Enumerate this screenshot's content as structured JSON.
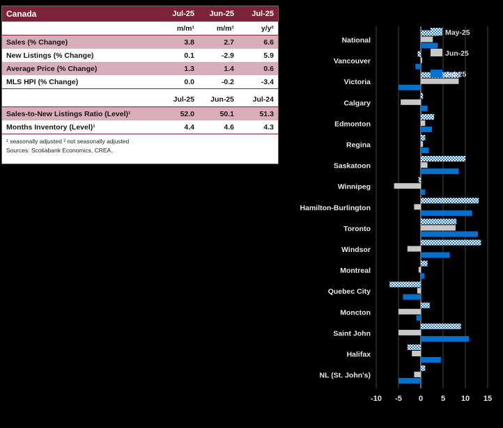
{
  "table": {
    "title": "Canada",
    "header_cols": [
      "Jul-25",
      "Jun-25",
      "Jul-25"
    ],
    "unit_row": [
      "m/m¹",
      "m/m¹",
      "y/y²"
    ],
    "rows_pct": [
      {
        "label": "Sales (% Change)",
        "values": [
          "3.8",
          "2.7",
          "6.6"
        ]
      },
      {
        "label": "New Listings (% Change)",
        "values": [
          "0.1",
          "-2.9",
          "5.9"
        ]
      },
      {
        "label": "Average Price (% Change)",
        "values": [
          "1.3",
          "1.4",
          "0.6"
        ]
      },
      {
        "label": "MLS HPI (% Change)",
        "values": [
          "0.0",
          "-0.2",
          "-3.4"
        ]
      }
    ],
    "mid_header_cols": [
      "Jul-25",
      "Jun-25",
      "Jul-24"
    ],
    "rows_level": [
      {
        "label": "Sales-to-New Listings Ratio (Level)¹",
        "values": [
          "52.0",
          "50.1",
          "51.3"
        ]
      },
      {
        "label": "Months Inventory (Level)¹",
        "values": [
          "4.4",
          "4.6",
          "4.3"
        ]
      }
    ],
    "footnote": "¹ seasonally adjusted  ² not seasonally adjusted",
    "sources": "Sources: Scotiabank Economics, CREA."
  },
  "colors": {
    "table_header_bg": "#7d2338",
    "table_row_shade": "#d8aebb",
    "chart_background": "#000000",
    "chart_text": "#e8e8e8",
    "bar_may_pattern": "#2f7ed8",
    "bar_jun": "#c8c9c7",
    "bar_jul": "#0072ce"
  },
  "chart_data": {
    "type": "bar",
    "orientation": "horizontal",
    "title": "",
    "xlabel": "",
    "ylabel": "",
    "xlim": [
      -10,
      15
    ],
    "xticks": [
      -10,
      -5,
      0,
      5,
      10,
      15
    ],
    "grid": true,
    "legend_position": "top-right",
    "categories": [
      "National",
      "Vancouver",
      "Victoria",
      "Calgary",
      "Edmonton",
      "Regina",
      "Saskatoon",
      "Winnipeg",
      "Hamilton-Burlington",
      "Toronto",
      "Windsor",
      "Montreal",
      "Quebec City",
      "Moncton",
      "Saint John",
      "Halifax",
      "NL (St. John's)"
    ],
    "series": [
      {
        "name": "May-25",
        "style": "pattern",
        "color": "#2f7ed8",
        "values": [
          4.0,
          -0.7,
          8.8,
          0.5,
          3.0,
          1.0,
          10.0,
          -0.5,
          13.0,
          8.0,
          13.5,
          1.5,
          -7.0,
          2.0,
          9.0,
          -3.0,
          1.0
        ]
      },
      {
        "name": "Jun-25",
        "style": "solid",
        "color": "#c8c9c7",
        "values": [
          2.7,
          0.3,
          8.5,
          -4.5,
          1.0,
          0.5,
          1.5,
          -6.0,
          -1.5,
          7.8,
          -3.0,
          -0.5,
          -0.8,
          -5.0,
          -5.0,
          -2.0,
          -1.5
        ]
      },
      {
        "name": "Jul-25",
        "style": "solid",
        "color": "#0072ce",
        "values": [
          3.8,
          -1.2,
          -5.0,
          1.5,
          2.5,
          1.8,
          8.5,
          1.0,
          11.5,
          12.8,
          6.5,
          0.8,
          -4.0,
          -1.0,
          10.8,
          4.5,
          -5.0
        ]
      }
    ]
  }
}
